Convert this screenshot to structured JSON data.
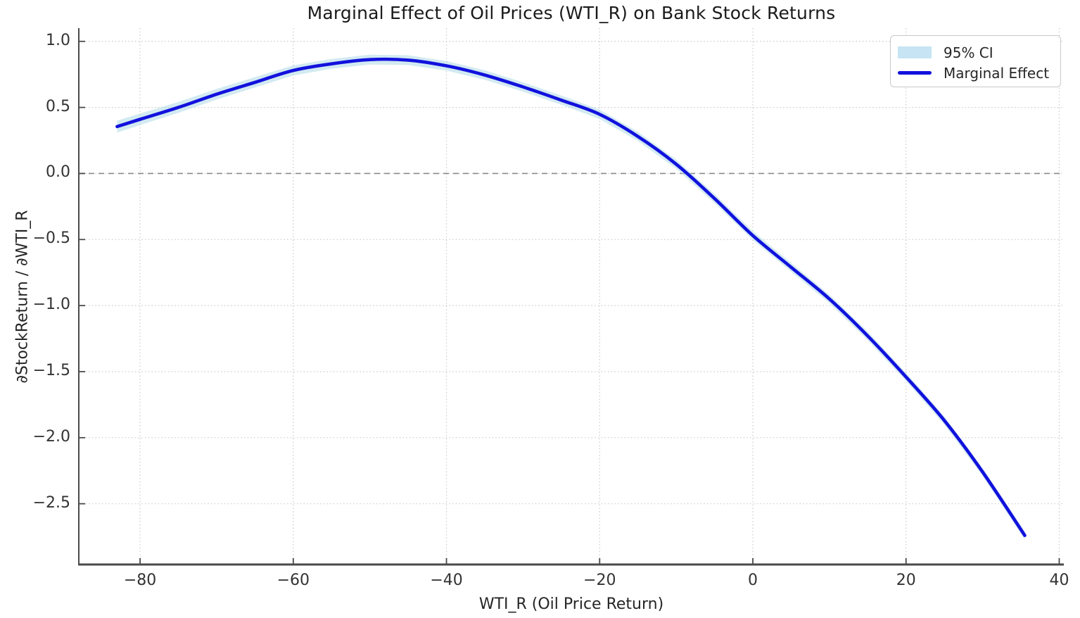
{
  "chart_data": {
    "type": "line",
    "title": "Marginal Effect of Oil Prices (WTI_R) on Bank Stock Returns",
    "xlabel": "WTI_R (Oil Price Return)",
    "ylabel": "∂StockReturn / ∂WTI_R",
    "legend": [
      "95% CI",
      "Marginal Effect"
    ],
    "legend_position": "upper right",
    "grid": "dotted",
    "zero_line": {
      "y": 0.0,
      "style": "dashed"
    },
    "x_ticks": [
      -80,
      -60,
      -40,
      -20,
      0,
      20,
      40
    ],
    "x_tick_labels": [
      "−80",
      "−60",
      "−40",
      "−20",
      "0",
      "20",
      "40"
    ],
    "y_ticks": [
      1.0,
      0.5,
      0.0,
      -0.5,
      -1.0,
      -1.5,
      -2.0,
      -2.5
    ],
    "y_tick_labels": [
      "1.0",
      "0.5",
      "0.0",
      "−0.5",
      "−1.0",
      "−1.5",
      "−2.0",
      "−2.5"
    ],
    "xlim": [
      -88,
      40.6
    ],
    "ylim": [
      -2.96,
      1.1
    ],
    "series": [
      {
        "name": "Marginal Effect",
        "x": [
          -83,
          -80,
          -75,
          -70,
          -65,
          -60,
          -55,
          -50,
          -45,
          -40,
          -35,
          -30,
          -25,
          -20,
          -15,
          -10,
          -5,
          0,
          5,
          10,
          15,
          20,
          25,
          30,
          35.5
        ],
        "y": [
          0.355,
          0.41,
          0.5,
          0.6,
          0.69,
          0.78,
          0.83,
          0.862,
          0.858,
          0.815,
          0.745,
          0.655,
          0.555,
          0.448,
          0.28,
          0.07,
          -0.19,
          -0.47,
          -0.71,
          -0.95,
          -1.23,
          -1.54,
          -1.87,
          -2.26,
          -2.74
        ],
        "ci_half_width": [
          0.045,
          0.043,
          0.041,
          0.04,
          0.039,
          0.038,
          0.037,
          0.037,
          0.037,
          0.036,
          0.036,
          0.035,
          0.035,
          0.035,
          0.034,
          0.034,
          0.034,
          0.033,
          0.033,
          0.032,
          0.032,
          0.031,
          0.031,
          0.03,
          0.03
        ]
      }
    ],
    "annotations": {
      "peak": {
        "x": -50,
        "y": 0.86
      },
      "zero_crossing_x": -8.7
    },
    "colors": {
      "line": "#1111dd",
      "ci_band": "#add8e6",
      "ci_band_opacity": 0.55,
      "grid": "#c9c9c9",
      "zero_line": "#8a8a8a",
      "spine": "#4a4a4a",
      "text": "#262626"
    }
  }
}
